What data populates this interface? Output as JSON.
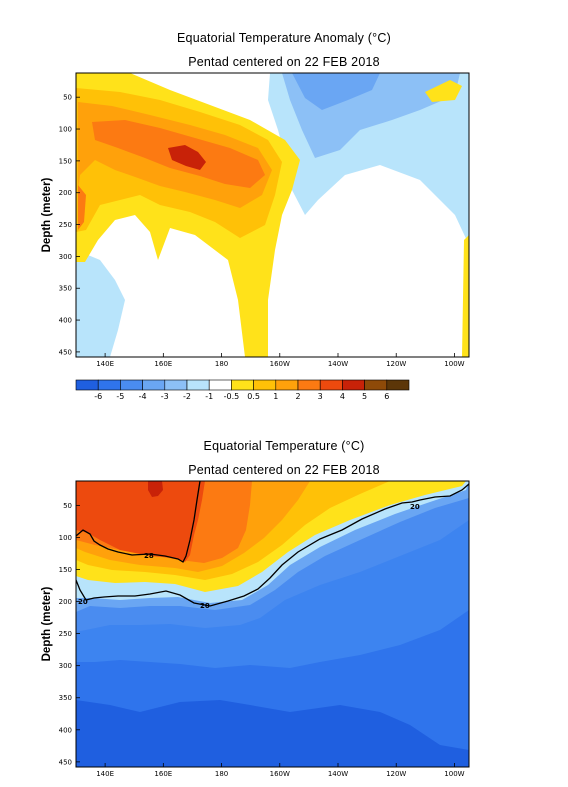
{
  "chart_data": [
    {
      "type": "heatmap",
      "title": "Equatorial Temperature Anomaly (°C)",
      "subtitle": "Pentad centered on 22 FEB 2018",
      "ylabel": "Depth (meter)",
      "xlabel": "",
      "x_ticks": [
        "140E",
        "160E",
        "180",
        "160W",
        "140W",
        "120W",
        "100W"
      ],
      "y_ticks": [
        "50",
        "100",
        "150",
        "200",
        "250",
        "300",
        "350",
        "400",
        "450"
      ],
      "ylim": [
        458,
        12
      ],
      "colorbar": {
        "labels": [
          "-6",
          "-5",
          "-4",
          "-3",
          "-2",
          "-1",
          "-0.5",
          "0.5",
          "1",
          "2",
          "3",
          "4",
          "5",
          "6"
        ],
        "colors": [
          "#1f5fe0",
          "#2f74ec",
          "#4a8cf0",
          "#6aa6f3",
          "#8cc0f6",
          "#b8e4fb",
          "#ffffff",
          "#ffe21a",
          "#ffc107",
          "#ffa10b",
          "#fc7a12",
          "#ed4a0e",
          "#c82208",
          "#8e4a08",
          "#5c3608"
        ]
      },
      "features": [
        {
          "name": "warm anomaly core",
          "max": 4,
          "near": "175E-180, 130-160 m"
        },
        {
          "name": "cool anomaly",
          "min": -2,
          "near": "150W-110W, 20-180 m"
        }
      ]
    },
    {
      "type": "heatmap",
      "title": "Equatorial Temperature (°C)",
      "subtitle": "Pentad centered on 22 FEB 2018",
      "ylabel": "Depth (meter)",
      "xlabel": "",
      "x_ticks": [
        "140E",
        "160E",
        "180",
        "160W",
        "140W",
        "120W",
        "100W"
      ],
      "y_ticks": [
        "50",
        "100",
        "150",
        "200",
        "250",
        "300",
        "350",
        "400",
        "450"
      ],
      "ylim": [
        458,
        12
      ],
      "contours": [
        {
          "level": "28",
          "label": "28"
        },
        {
          "level": "20",
          "labels": [
            "20",
            "20",
            "20"
          ]
        }
      ]
    }
  ]
}
